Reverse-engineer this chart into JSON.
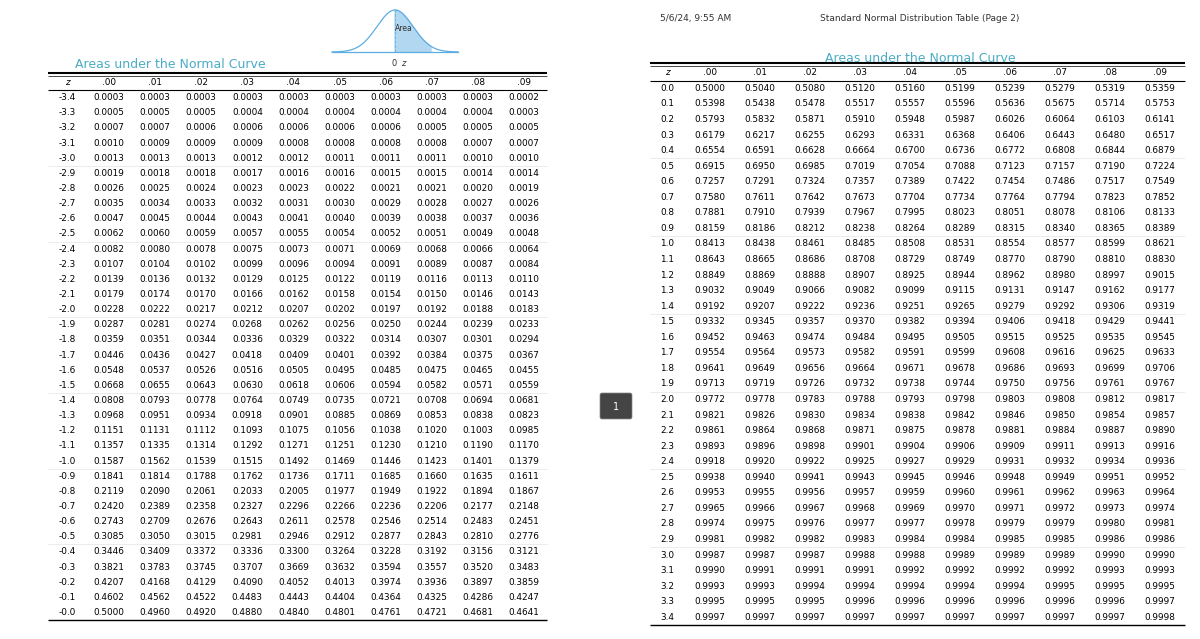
{
  "title_left": "Areas under the Normal Curve",
  "title_right": "Areas under the Normal Curve",
  "header_top_left": "5/6/24, 9:55 AM",
  "header_top_center": "Standard Normal Distribution Table (Page 2)",
  "col_headers": [
    "z",
    ".00",
    ".01",
    ".02",
    ".03",
    ".04",
    ".05",
    ".06",
    ".07",
    ".08",
    ".09"
  ],
  "title_color": "#4BACC6",
  "bg_color": "#FFFFFF",
  "dark_panel_color": "#2B2B2B",
  "table_left": [
    [
      "-3.4",
      "0.0003",
      "0.0003",
      "0.0003",
      "0.0003",
      "0.0003",
      "0.0003",
      "0.0003",
      "0.0003",
      "0.0003",
      "0.0002"
    ],
    [
      "-3.3",
      "0.0005",
      "0.0005",
      "0.0005",
      "0.0004",
      "0.0004",
      "0.0004",
      "0.0004",
      "0.0004",
      "0.0004",
      "0.0003"
    ],
    [
      "-3.2",
      "0.0007",
      "0.0007",
      "0.0006",
      "0.0006",
      "0.0006",
      "0.0006",
      "0.0006",
      "0.0005",
      "0.0005",
      "0.0005"
    ],
    [
      "-3.1",
      "0.0010",
      "0.0009",
      "0.0009",
      "0.0009",
      "0.0008",
      "0.0008",
      "0.0008",
      "0.0008",
      "0.0007",
      "0.0007"
    ],
    [
      "-3.0",
      "0.0013",
      "0.0013",
      "0.0013",
      "0.0012",
      "0.0012",
      "0.0011",
      "0.0011",
      "0.0011",
      "0.0010",
      "0.0010"
    ],
    [
      "-2.9",
      "0.0019",
      "0.0018",
      "0.0018",
      "0.0017",
      "0.0016",
      "0.0016",
      "0.0015",
      "0.0015",
      "0.0014",
      "0.0014"
    ],
    [
      "-2.8",
      "0.0026",
      "0.0025",
      "0.0024",
      "0.0023",
      "0.0023",
      "0.0022",
      "0.0021",
      "0.0021",
      "0.0020",
      "0.0019"
    ],
    [
      "-2.7",
      "0.0035",
      "0.0034",
      "0.0033",
      "0.0032",
      "0.0031",
      "0.0030",
      "0.0029",
      "0.0028",
      "0.0027",
      "0.0026"
    ],
    [
      "-2.6",
      "0.0047",
      "0.0045",
      "0.0044",
      "0.0043",
      "0.0041",
      "0.0040",
      "0.0039",
      "0.0038",
      "0.0037",
      "0.0036"
    ],
    [
      "-2.5",
      "0.0062",
      "0.0060",
      "0.0059",
      "0.0057",
      "0.0055",
      "0.0054",
      "0.0052",
      "0.0051",
      "0.0049",
      "0.0048"
    ],
    [
      "-2.4",
      "0.0082",
      "0.0080",
      "0.0078",
      "0.0075",
      "0.0073",
      "0.0071",
      "0.0069",
      "0.0068",
      "0.0066",
      "0.0064"
    ],
    [
      "-2.3",
      "0.0107",
      "0.0104",
      "0.0102",
      "0.0099",
      "0.0096",
      "0.0094",
      "0.0091",
      "0.0089",
      "0.0087",
      "0.0084"
    ],
    [
      "-2.2",
      "0.0139",
      "0.0136",
      "0.0132",
      "0.0129",
      "0.0125",
      "0.0122",
      "0.0119",
      "0.0116",
      "0.0113",
      "0.0110"
    ],
    [
      "-2.1",
      "0.0179",
      "0.0174",
      "0.0170",
      "0.0166",
      "0.0162",
      "0.0158",
      "0.0154",
      "0.0150",
      "0.0146",
      "0.0143"
    ],
    [
      "-2.0",
      "0.0228",
      "0.0222",
      "0.0217",
      "0.0212",
      "0.0207",
      "0.0202",
      "0.0197",
      "0.0192",
      "0.0188",
      "0.0183"
    ],
    [
      "-1.9",
      "0.0287",
      "0.0281",
      "0.0274",
      "0.0268",
      "0.0262",
      "0.0256",
      "0.0250",
      "0.0244",
      "0.0239",
      "0.0233"
    ],
    [
      "-1.8",
      "0.0359",
      "0.0351",
      "0.0344",
      "0.0336",
      "0.0329",
      "0.0322",
      "0.0314",
      "0.0307",
      "0.0301",
      "0.0294"
    ],
    [
      "-1.7",
      "0.0446",
      "0.0436",
      "0.0427",
      "0.0418",
      "0.0409",
      "0.0401",
      "0.0392",
      "0.0384",
      "0.0375",
      "0.0367"
    ],
    [
      "-1.6",
      "0.0548",
      "0.0537",
      "0.0526",
      "0.0516",
      "0.0505",
      "0.0495",
      "0.0485",
      "0.0475",
      "0.0465",
      "0.0455"
    ],
    [
      "-1.5",
      "0.0668",
      "0.0655",
      "0.0643",
      "0.0630",
      "0.0618",
      "0.0606",
      "0.0594",
      "0.0582",
      "0.0571",
      "0.0559"
    ],
    [
      "-1.4",
      "0.0808",
      "0.0793",
      "0.0778",
      "0.0764",
      "0.0749",
      "0.0735",
      "0.0721",
      "0.0708",
      "0.0694",
      "0.0681"
    ],
    [
      "-1.3",
      "0.0968",
      "0.0951",
      "0.0934",
      "0.0918",
      "0.0901",
      "0.0885",
      "0.0869",
      "0.0853",
      "0.0838",
      "0.0823"
    ],
    [
      "-1.2",
      "0.1151",
      "0.1131",
      "0.1112",
      "0.1093",
      "0.1075",
      "0.1056",
      "0.1038",
      "0.1020",
      "0.1003",
      "0.0985"
    ],
    [
      "-1.1",
      "0.1357",
      "0.1335",
      "0.1314",
      "0.1292",
      "0.1271",
      "0.1251",
      "0.1230",
      "0.1210",
      "0.1190",
      "0.1170"
    ],
    [
      "-1.0",
      "0.1587",
      "0.1562",
      "0.1539",
      "0.1515",
      "0.1492",
      "0.1469",
      "0.1446",
      "0.1423",
      "0.1401",
      "0.1379"
    ],
    [
      "-0.9",
      "0.1841",
      "0.1814",
      "0.1788",
      "0.1762",
      "0.1736",
      "0.1711",
      "0.1685",
      "0.1660",
      "0.1635",
      "0.1611"
    ],
    [
      "-0.8",
      "0.2119",
      "0.2090",
      "0.2061",
      "0.2033",
      "0.2005",
      "0.1977",
      "0.1949",
      "0.1922",
      "0.1894",
      "0.1867"
    ],
    [
      "-0.7",
      "0.2420",
      "0.2389",
      "0.2358",
      "0.2327",
      "0.2296",
      "0.2266",
      "0.2236",
      "0.2206",
      "0.2177",
      "0.2148"
    ],
    [
      "-0.6",
      "0.2743",
      "0.2709",
      "0.2676",
      "0.2643",
      "0.2611",
      "0.2578",
      "0.2546",
      "0.2514",
      "0.2483",
      "0.2451"
    ],
    [
      "-0.5",
      "0.3085",
      "0.3050",
      "0.3015",
      "0.2981",
      "0.2946",
      "0.2912",
      "0.2877",
      "0.2843",
      "0.2810",
      "0.2776"
    ],
    [
      "-0.4",
      "0.3446",
      "0.3409",
      "0.3372",
      "0.3336",
      "0.3300",
      "0.3264",
      "0.3228",
      "0.3192",
      "0.3156",
      "0.3121"
    ],
    [
      "-0.3",
      "0.3821",
      "0.3783",
      "0.3745",
      "0.3707",
      "0.3669",
      "0.3632",
      "0.3594",
      "0.3557",
      "0.3520",
      "0.3483"
    ],
    [
      "-0.2",
      "0.4207",
      "0.4168",
      "0.4129",
      "0.4090",
      "0.4052",
      "0.4013",
      "0.3974",
      "0.3936",
      "0.3897",
      "0.3859"
    ],
    [
      "-0.1",
      "0.4602",
      "0.4562",
      "0.4522",
      "0.4483",
      "0.4443",
      "0.4404",
      "0.4364",
      "0.4325",
      "0.4286",
      "0.4247"
    ],
    [
      "-0.0",
      "0.5000",
      "0.4960",
      "0.4920",
      "0.4880",
      "0.4840",
      "0.4801",
      "0.4761",
      "0.4721",
      "0.4681",
      "0.4641"
    ]
  ],
  "table_right": [
    [
      "0.0",
      "0.5000",
      "0.5040",
      "0.5080",
      "0.5120",
      "0.5160",
      "0.5199",
      "0.5239",
      "0.5279",
      "0.5319",
      "0.5359"
    ],
    [
      "0.1",
      "0.5398",
      "0.5438",
      "0.5478",
      "0.5517",
      "0.5557",
      "0.5596",
      "0.5636",
      "0.5675",
      "0.5714",
      "0.5753"
    ],
    [
      "0.2",
      "0.5793",
      "0.5832",
      "0.5871",
      "0.5910",
      "0.5948",
      "0.5987",
      "0.6026",
      "0.6064",
      "0.6103",
      "0.6141"
    ],
    [
      "0.3",
      "0.6179",
      "0.6217",
      "0.6255",
      "0.6293",
      "0.6331",
      "0.6368",
      "0.6406",
      "0.6443",
      "0.6480",
      "0.6517"
    ],
    [
      "0.4",
      "0.6554",
      "0.6591",
      "0.6628",
      "0.6664",
      "0.6700",
      "0.6736",
      "0.6772",
      "0.6808",
      "0.6844",
      "0.6879"
    ],
    [
      "0.5",
      "0.6915",
      "0.6950",
      "0.6985",
      "0.7019",
      "0.7054",
      "0.7088",
      "0.7123",
      "0.7157",
      "0.7190",
      "0.7224"
    ],
    [
      "0.6",
      "0.7257",
      "0.7291",
      "0.7324",
      "0.7357",
      "0.7389",
      "0.7422",
      "0.7454",
      "0.7486",
      "0.7517",
      "0.7549"
    ],
    [
      "0.7",
      "0.7580",
      "0.7611",
      "0.7642",
      "0.7673",
      "0.7704",
      "0.7734",
      "0.7764",
      "0.7794",
      "0.7823",
      "0.7852"
    ],
    [
      "0.8",
      "0.7881",
      "0.7910",
      "0.7939",
      "0.7967",
      "0.7995",
      "0.8023",
      "0.8051",
      "0.8078",
      "0.8106",
      "0.8133"
    ],
    [
      "0.9",
      "0.8159",
      "0.8186",
      "0.8212",
      "0.8238",
      "0.8264",
      "0.8289",
      "0.8315",
      "0.8340",
      "0.8365",
      "0.8389"
    ],
    [
      "1.0",
      "0.8413",
      "0.8438",
      "0.8461",
      "0.8485",
      "0.8508",
      "0.8531",
      "0.8554",
      "0.8577",
      "0.8599",
      "0.8621"
    ],
    [
      "1.1",
      "0.8643",
      "0.8665",
      "0.8686",
      "0.8708",
      "0.8729",
      "0.8749",
      "0.8770",
      "0.8790",
      "0.8810",
      "0.8830"
    ],
    [
      "1.2",
      "0.8849",
      "0.8869",
      "0.8888",
      "0.8907",
      "0.8925",
      "0.8944",
      "0.8962",
      "0.8980",
      "0.8997",
      "0.9015"
    ],
    [
      "1.3",
      "0.9032",
      "0.9049",
      "0.9066",
      "0.9082",
      "0.9099",
      "0.9115",
      "0.9131",
      "0.9147",
      "0.9162",
      "0.9177"
    ],
    [
      "1.4",
      "0.9192",
      "0.9207",
      "0.9222",
      "0.9236",
      "0.9251",
      "0.9265",
      "0.9279",
      "0.9292",
      "0.9306",
      "0.9319"
    ],
    [
      "1.5",
      "0.9332",
      "0.9345",
      "0.9357",
      "0.9370",
      "0.9382",
      "0.9394",
      "0.9406",
      "0.9418",
      "0.9429",
      "0.9441"
    ],
    [
      "1.6",
      "0.9452",
      "0.9463",
      "0.9474",
      "0.9484",
      "0.9495",
      "0.9505",
      "0.9515",
      "0.9525",
      "0.9535",
      "0.9545"
    ],
    [
      "1.7",
      "0.9554",
      "0.9564",
      "0.9573",
      "0.9582",
      "0.9591",
      "0.9599",
      "0.9608",
      "0.9616",
      "0.9625",
      "0.9633"
    ],
    [
      "1.8",
      "0.9641",
      "0.9649",
      "0.9656",
      "0.9664",
      "0.9671",
      "0.9678",
      "0.9686",
      "0.9693",
      "0.9699",
      "0.9706"
    ],
    [
      "1.9",
      "0.9713",
      "0.9719",
      "0.9726",
      "0.9732",
      "0.9738",
      "0.9744",
      "0.9750",
      "0.9756",
      "0.9761",
      "0.9767"
    ],
    [
      "2.0",
      "0.9772",
      "0.9778",
      "0.9783",
      "0.9788",
      "0.9793",
      "0.9798",
      "0.9803",
      "0.9808",
      "0.9812",
      "0.9817"
    ],
    [
      "2.1",
      "0.9821",
      "0.9826",
      "0.9830",
      "0.9834",
      "0.9838",
      "0.9842",
      "0.9846",
      "0.9850",
      "0.9854",
      "0.9857"
    ],
    [
      "2.2",
      "0.9861",
      "0.9864",
      "0.9868",
      "0.9871",
      "0.9875",
      "0.9878",
      "0.9881",
      "0.9884",
      "0.9887",
      "0.9890"
    ],
    [
      "2.3",
      "0.9893",
      "0.9896",
      "0.9898",
      "0.9901",
      "0.9904",
      "0.9906",
      "0.9909",
      "0.9911",
      "0.9913",
      "0.9916"
    ],
    [
      "2.4",
      "0.9918",
      "0.9920",
      "0.9922",
      "0.9925",
      "0.9927",
      "0.9929",
      "0.9931",
      "0.9932",
      "0.9934",
      "0.9936"
    ],
    [
      "2.5",
      "0.9938",
      "0.9940",
      "0.9941",
      "0.9943",
      "0.9945",
      "0.9946",
      "0.9948",
      "0.9949",
      "0.9951",
      "0.9952"
    ],
    [
      "2.6",
      "0.9953",
      "0.9955",
      "0.9956",
      "0.9957",
      "0.9959",
      "0.9960",
      "0.9961",
      "0.9962",
      "0.9963",
      "0.9964"
    ],
    [
      "2.7",
      "0.9965",
      "0.9966",
      "0.9967",
      "0.9968",
      "0.9969",
      "0.9970",
      "0.9971",
      "0.9972",
      "0.9973",
      "0.9974"
    ],
    [
      "2.8",
      "0.9974",
      "0.9975",
      "0.9976",
      "0.9977",
      "0.9977",
      "0.9978",
      "0.9979",
      "0.9979",
      "0.9980",
      "0.9981"
    ],
    [
      "2.9",
      "0.9981",
      "0.9982",
      "0.9982",
      "0.9983",
      "0.9984",
      "0.9984",
      "0.9985",
      "0.9985",
      "0.9986",
      "0.9986"
    ],
    [
      "3.0",
      "0.9987",
      "0.9987",
      "0.9987",
      "0.9988",
      "0.9988",
      "0.9989",
      "0.9989",
      "0.9989",
      "0.9990",
      "0.9990"
    ],
    [
      "3.1",
      "0.9990",
      "0.9991",
      "0.9991",
      "0.9991",
      "0.9992",
      "0.9992",
      "0.9992",
      "0.9992",
      "0.9993",
      "0.9993"
    ],
    [
      "3.2",
      "0.9993",
      "0.9993",
      "0.9994",
      "0.9994",
      "0.9994",
      "0.9994",
      "0.9994",
      "0.9995",
      "0.9995",
      "0.9995"
    ],
    [
      "3.3",
      "0.9995",
      "0.9995",
      "0.9995",
      "0.9996",
      "0.9996",
      "0.9996",
      "0.9996",
      "0.9996",
      "0.9996",
      "0.9997"
    ],
    [
      "3.4",
      "0.9997",
      "0.9997",
      "0.9997",
      "0.9997",
      "0.9997",
      "0.9997",
      "0.9997",
      "0.9997",
      "0.9997",
      "0.9998"
    ]
  ]
}
